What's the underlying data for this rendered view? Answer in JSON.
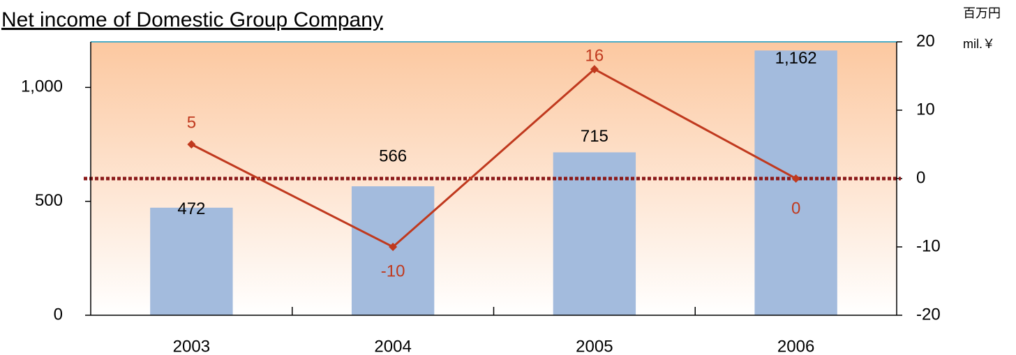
{
  "chart_data": {
    "type": "bar",
    "title": "Net income of  Domestic Group Company",
    "unit_label": "百万円",
    "unit_label_en": "mil.￥",
    "categories": [
      "2003",
      "2004",
      "2005",
      "2006"
    ],
    "series": [
      {
        "type": "bar",
        "color": "#a3bbdd",
        "values": [
          472,
          566,
          715,
          1162
        ]
      },
      {
        "type": "line",
        "color": "#c0391e",
        "axis": "y2",
        "values": [
          5,
          -10,
          16,
          0
        ]
      }
    ],
    "ylim": [
      0,
      1200
    ],
    "yticks": [
      0,
      500,
      {
        "value": 1000,
        "label": "1,000"
      }
    ],
    "y2lim": [
      -20,
      20
    ],
    "y2ticks": [
      -20,
      -10,
      0,
      10,
      20
    ],
    "value_labels": [
      "472",
      "566",
      "715",
      "1,162"
    ],
    "reference_line": {
      "value": 0,
      "axis": "y2",
      "color": "#8b1a1a",
      "style": "dotted"
    },
    "background_gradient": [
      "#fcc8a0",
      "#ffffff"
    ],
    "grid": false
  }
}
